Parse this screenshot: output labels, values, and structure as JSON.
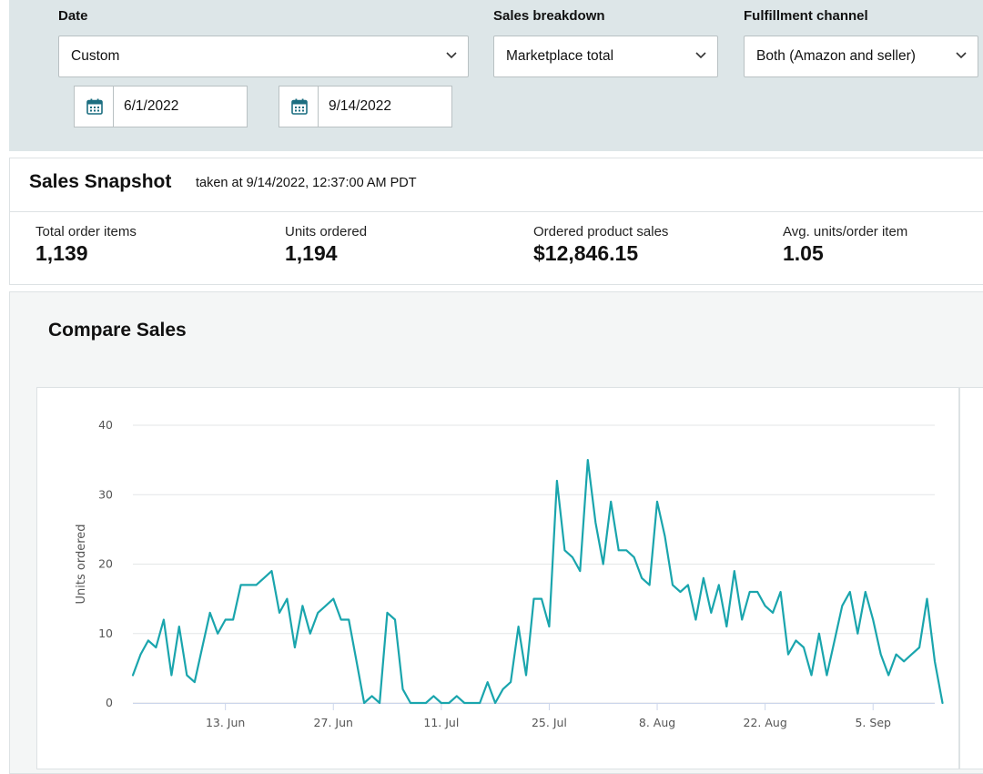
{
  "filters": {
    "date": {
      "label": "Date",
      "value": "Custom",
      "start": "6/1/2022",
      "end": "9/14/2022"
    },
    "breakdown": {
      "label": "Sales breakdown",
      "value": "Marketplace total"
    },
    "channel": {
      "label": "Fulfillment channel",
      "value": "Both (Amazon and seller)"
    }
  },
  "snapshot": {
    "title": "Sales Snapshot",
    "subtitle": "taken at 9/14/2022, 12:37:00 AM PDT",
    "metrics": [
      {
        "label": "Total order items",
        "value": "1,139"
      },
      {
        "label": "Units ordered",
        "value": "1,194"
      },
      {
        "label": "Ordered product sales",
        "value": "$12,846.15"
      },
      {
        "label": "Avg. units/order item",
        "value": "1.05"
      }
    ]
  },
  "compare": {
    "title": "Compare Sales"
  },
  "colors": {
    "line": "#1aa5ad",
    "filter_bg": "#dde6e8",
    "calendar_icon": "#1c6e80"
  },
  "chart_data": {
    "type": "line",
    "title": "",
    "xlabel": "",
    "ylabel": "Units ordered",
    "ylim": [
      0,
      40
    ],
    "yticks": [
      0,
      10,
      20,
      30,
      40
    ],
    "grid": true,
    "x_start": "2022-06-01",
    "x_end": "2022-09-13",
    "xtick_labels": [
      "13. Jun",
      "27. Jun",
      "11. Jul",
      "25. Jul",
      "8. Aug",
      "22. Aug",
      "5. Sep"
    ],
    "xtick_dates": [
      "2022-06-13",
      "2022-06-27",
      "2022-07-11",
      "2022-07-25",
      "2022-08-08",
      "2022-08-22",
      "2022-09-05"
    ],
    "series": [
      {
        "values": [
          4,
          7,
          9,
          8,
          12,
          4,
          11,
          4,
          3,
          8,
          13,
          10,
          12,
          12,
          17,
          17,
          17,
          18,
          19,
          13,
          15,
          8,
          14,
          10,
          13,
          14,
          15,
          12,
          12,
          6,
          0,
          1,
          0,
          13,
          12,
          2,
          0,
          0,
          0,
          1,
          0,
          0,
          1,
          0,
          0,
          0,
          3,
          0,
          2,
          3,
          11,
          4,
          15,
          15,
          11,
          32,
          22,
          21,
          19,
          35,
          26,
          20,
          29,
          22,
          22,
          21,
          18,
          17,
          29,
          24,
          17,
          16,
          17,
          12,
          18,
          13,
          17,
          11,
          19,
          12,
          16,
          16,
          14,
          13,
          16,
          7,
          9,
          8,
          4,
          10,
          4,
          9,
          14,
          16,
          10,
          16,
          12,
          7,
          4,
          7,
          6,
          7,
          8,
          15,
          6,
          0
        ]
      }
    ]
  }
}
